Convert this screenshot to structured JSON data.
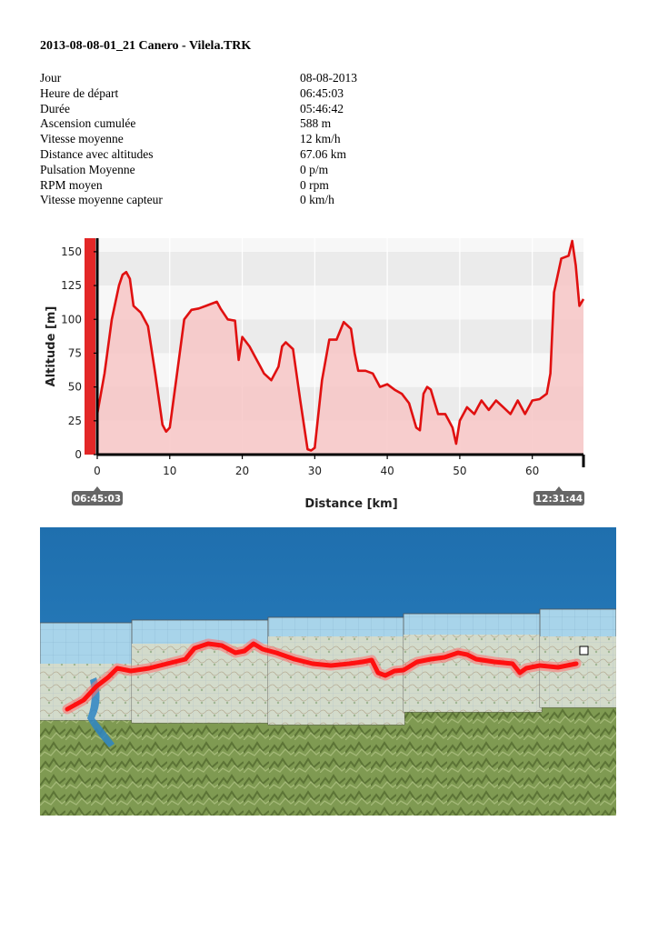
{
  "document": {
    "title": "2013-08-08-01_21 Canero - Vilela.TRK"
  },
  "summary": [
    {
      "label": "Jour",
      "value": "08-08-2013"
    },
    {
      "label": "Heure de départ",
      "value": "06:45:03"
    },
    {
      "label": "Durée",
      "value": "05:46:42"
    },
    {
      "label": "Ascension cumulée",
      "value": "588 m"
    },
    {
      "label": "Vitesse moyenne",
      "value": "12 km/h"
    },
    {
      "label": "Distance avec altitudes",
      "value": "67.06 km"
    },
    {
      "label": "Pulsation Moyenne",
      "value": "0 p/m"
    },
    {
      "label": "RPM moyen",
      "value": "0 rpm"
    },
    {
      "label": "Vitesse moyenne capteur",
      "value": "0 km/h"
    }
  ],
  "chart_data": {
    "type": "area",
    "xlabel": "Distance [km]",
    "ylabel": "Altitude [m]",
    "xlim": [
      0,
      67.06
    ],
    "ylim": [
      0,
      160
    ],
    "x_ticks": [
      0,
      10,
      20,
      30,
      40,
      50,
      60
    ],
    "y_ticks": [
      0,
      25,
      50,
      75,
      100,
      125,
      150
    ],
    "start_time": "06:45:03",
    "end_time": "12:31:44",
    "grid": "horizontal bands",
    "colors": {
      "line": "#e01010",
      "fill": "#f7c6c6",
      "band": "#ebebeb"
    },
    "x": [
      0,
      1,
      2,
      3,
      3.5,
      4,
      4.5,
      5,
      6,
      7,
      8,
      9,
      9.5,
      10,
      11,
      12,
      13,
      14,
      15,
      16,
      16.5,
      17,
      18,
      19,
      19.5,
      20,
      21,
      22,
      22.5,
      23,
      24,
      25,
      25.5,
      26,
      27,
      28,
      29,
      29.5,
      30,
      31,
      32,
      33,
      34,
      35,
      35.5,
      36,
      37,
      38,
      39,
      40,
      41,
      42,
      43,
      44,
      44.5,
      45,
      45.5,
      46,
      47,
      48,
      48.5,
      49,
      49.5,
      50,
      51,
      52,
      52.5,
      53,
      54,
      55,
      56,
      57,
      58,
      59,
      60,
      61,
      62,
      62.5,
      63,
      64,
      65,
      65.5,
      66,
      66.5,
      67.06
    ],
    "values": [
      30,
      60,
      100,
      125,
      133,
      135,
      130,
      110,
      105,
      95,
      60,
      22,
      17,
      20,
      60,
      100,
      107,
      108,
      110,
      112,
      113,
      108,
      100,
      99,
      70,
      87,
      80,
      70,
      65,
      60,
      55,
      65,
      80,
      83,
      78,
      40,
      4,
      3,
      5,
      55,
      85,
      85,
      98,
      93,
      75,
      62,
      62,
      60,
      50,
      52,
      48,
      45,
      38,
      20,
      18,
      45,
      50,
      48,
      30,
      30,
      25,
      20,
      8,
      25,
      35,
      30,
      35,
      40,
      33,
      40,
      35,
      30,
      40,
      30,
      40,
      41,
      45,
      60,
      120,
      145,
      147,
      158,
      140,
      110,
      115
    ],
    "units": "m"
  },
  "map": {
    "colors": {
      "sea": "#2d85c4",
      "land": "#7f9a52",
      "route": "#ff1010"
    },
    "end_marker": "white-square"
  }
}
